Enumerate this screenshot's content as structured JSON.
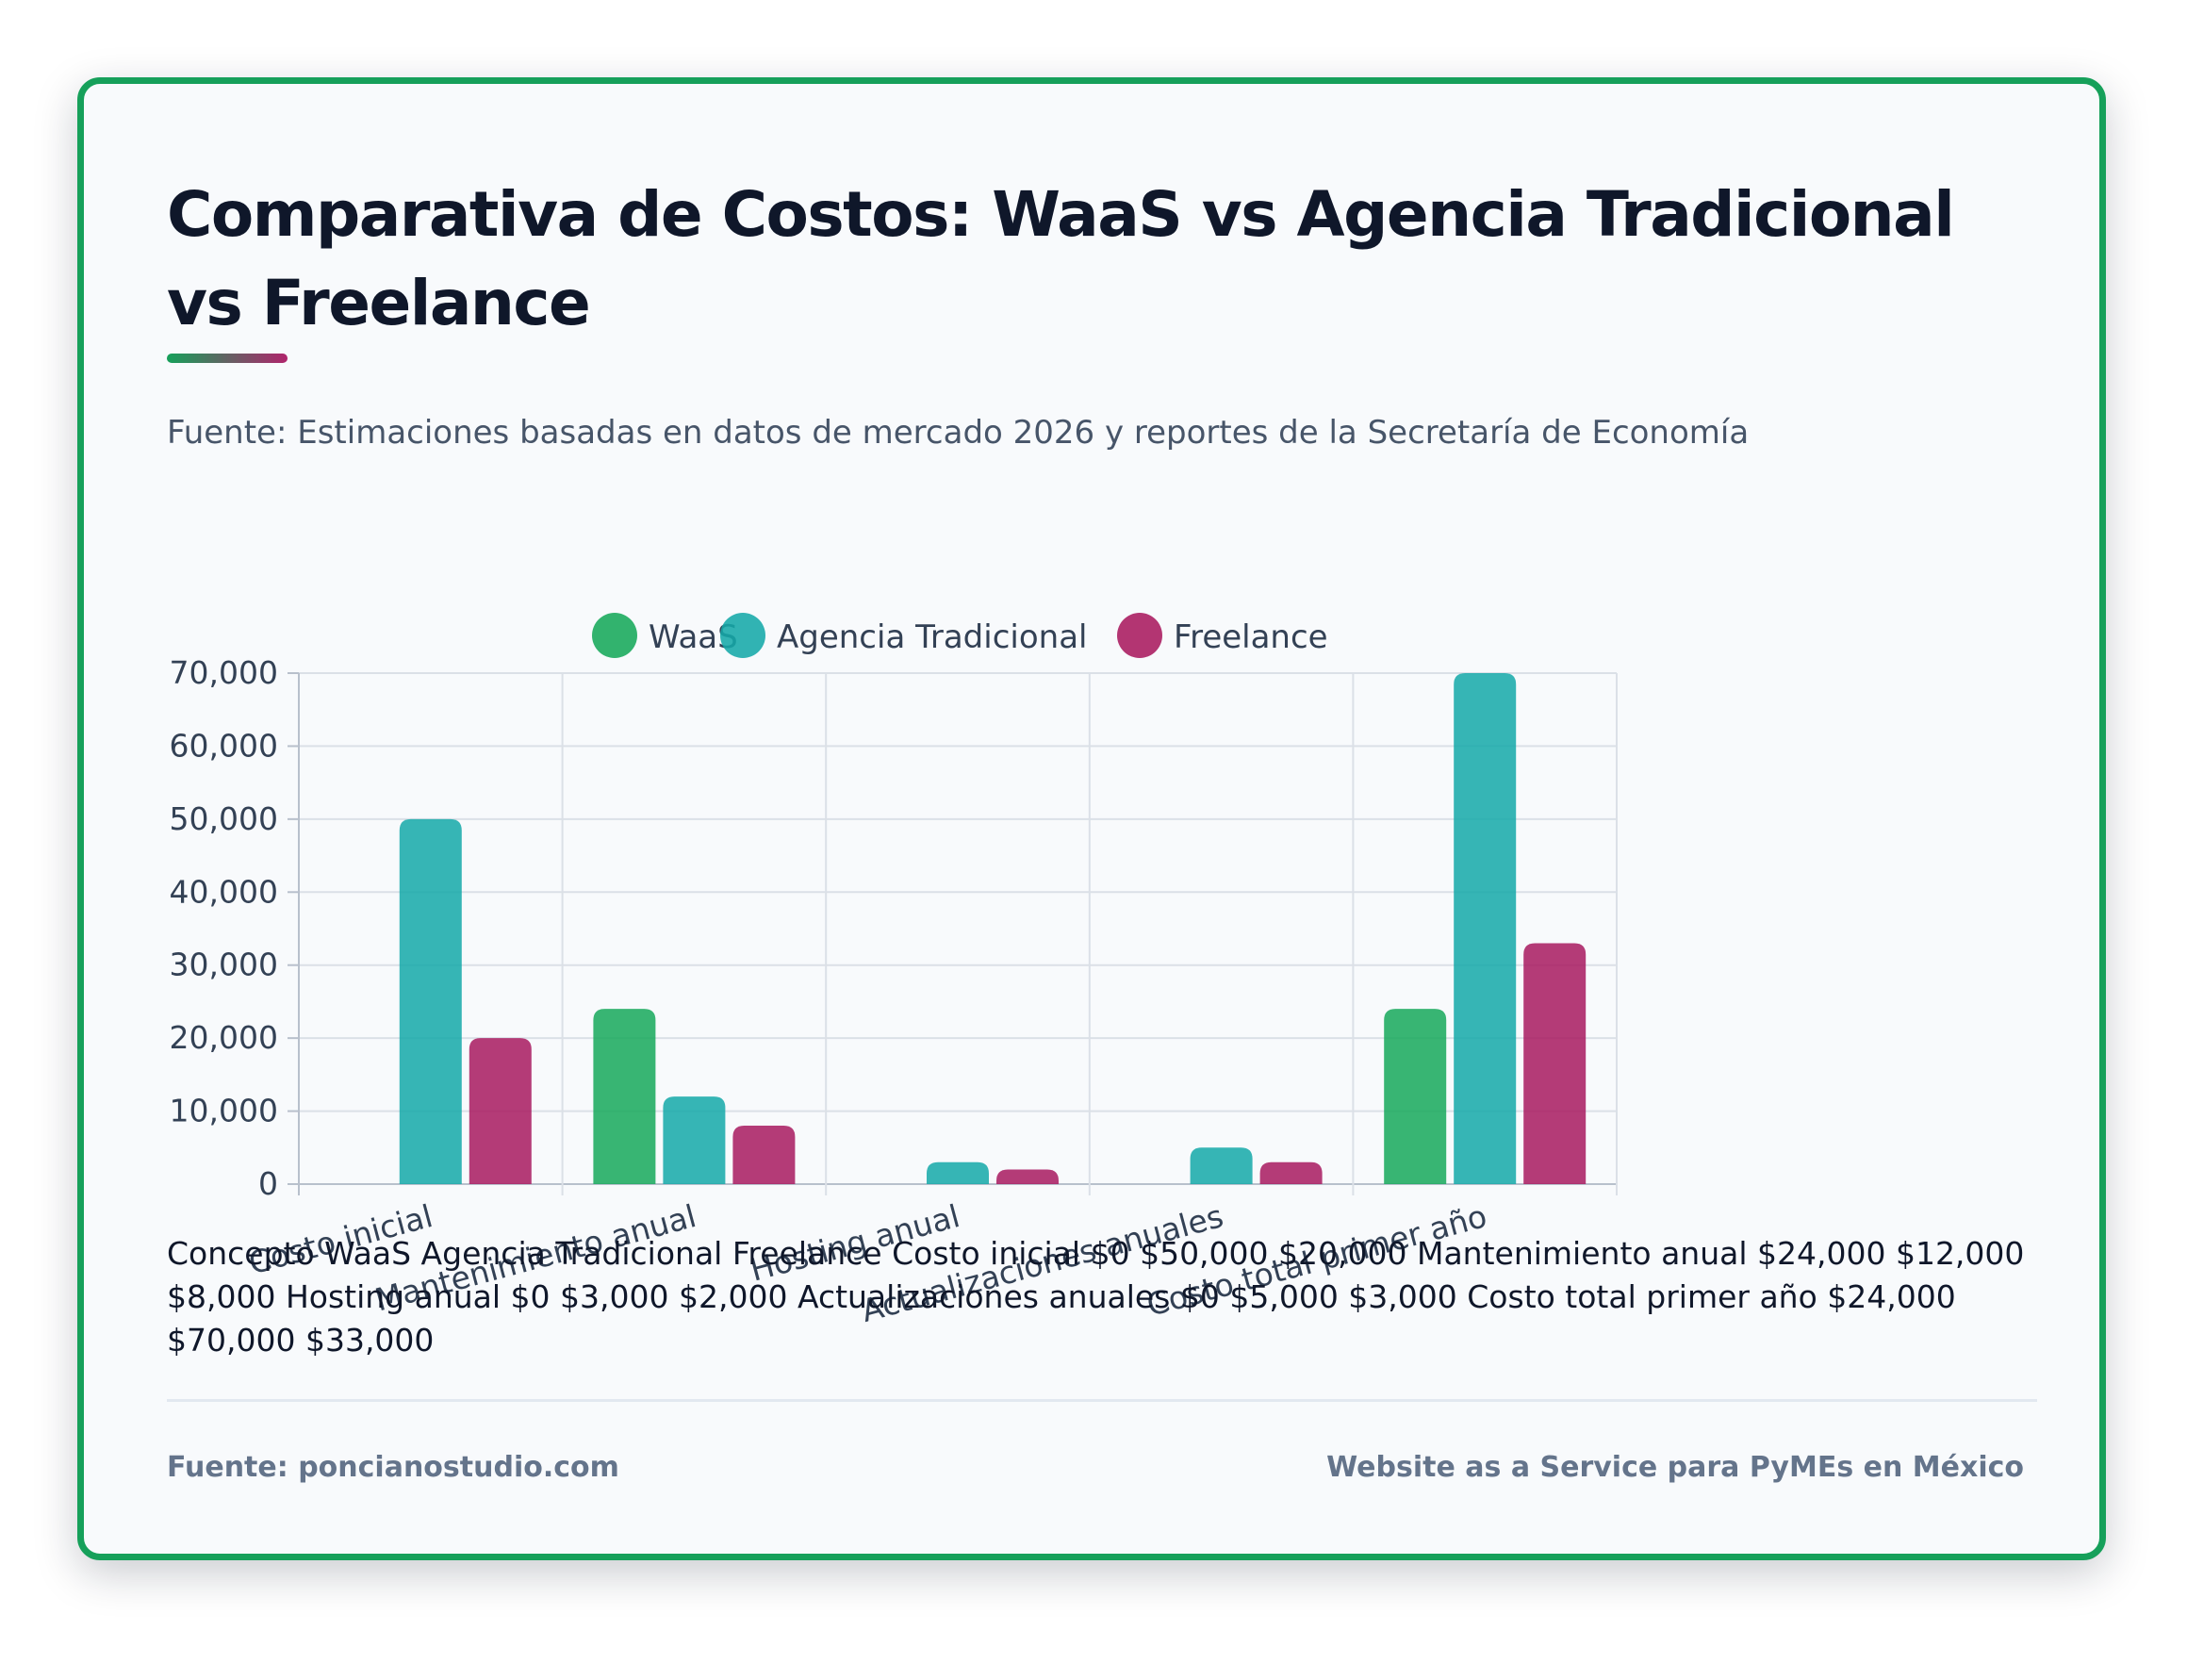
{
  "header": {
    "title": "Comparativa de Costos: WaaS vs Agencia Tradicional vs Freelance",
    "source": "Fuente: Estimaciones basadas en datos de mercado 2026 y reportes de la Secretaría de Economía"
  },
  "chart_data": {
    "type": "bar",
    "title": "",
    "xlabel": "",
    "ylabel": "",
    "categories": [
      "Costo inicial",
      "Mantenimiento anual",
      "Hosting anual",
      "Actualizaciones anuales",
      "Costo total primer año"
    ],
    "series": [
      {
        "name": "WaaS",
        "color": "#16a85a",
        "values": [
          0,
          24000,
          0,
          0,
          24000
        ]
      },
      {
        "name": "Agencia Tradicional",
        "color": "#14a8a8",
        "values": [
          50000,
          12000,
          3000,
          5000,
          70000
        ]
      },
      {
        "name": "Freelance",
        "color": "#a8195f",
        "values": [
          20000,
          8000,
          2000,
          3000,
          33000
        ]
      }
    ],
    "ylim": [
      0,
      70000
    ],
    "yticks": [
      0,
      10000,
      20000,
      30000,
      40000,
      50000,
      60000,
      70000
    ],
    "yticklabels": [
      "0",
      "10,000",
      "20,000",
      "30,000",
      "40,000",
      "50,000",
      "60,000",
      "70,000"
    ],
    "grid": true,
    "legend": "top"
  },
  "summary_text": "Concepto WaaS Agencia Tradicional Freelance Costo inicial $0 $50,000 $20,000 Mantenimiento anual $24,000 $12,000 $8,000 Hosting anual $0 $3,000 $2,000 Actualizaciones anuales $0 $5,000 $3,000 Costo total primer año $24,000 $70,000 $33,000",
  "footer": {
    "left": "Fuente: poncianostudio.com",
    "right": "Website as a Service para PyMEs en México"
  }
}
